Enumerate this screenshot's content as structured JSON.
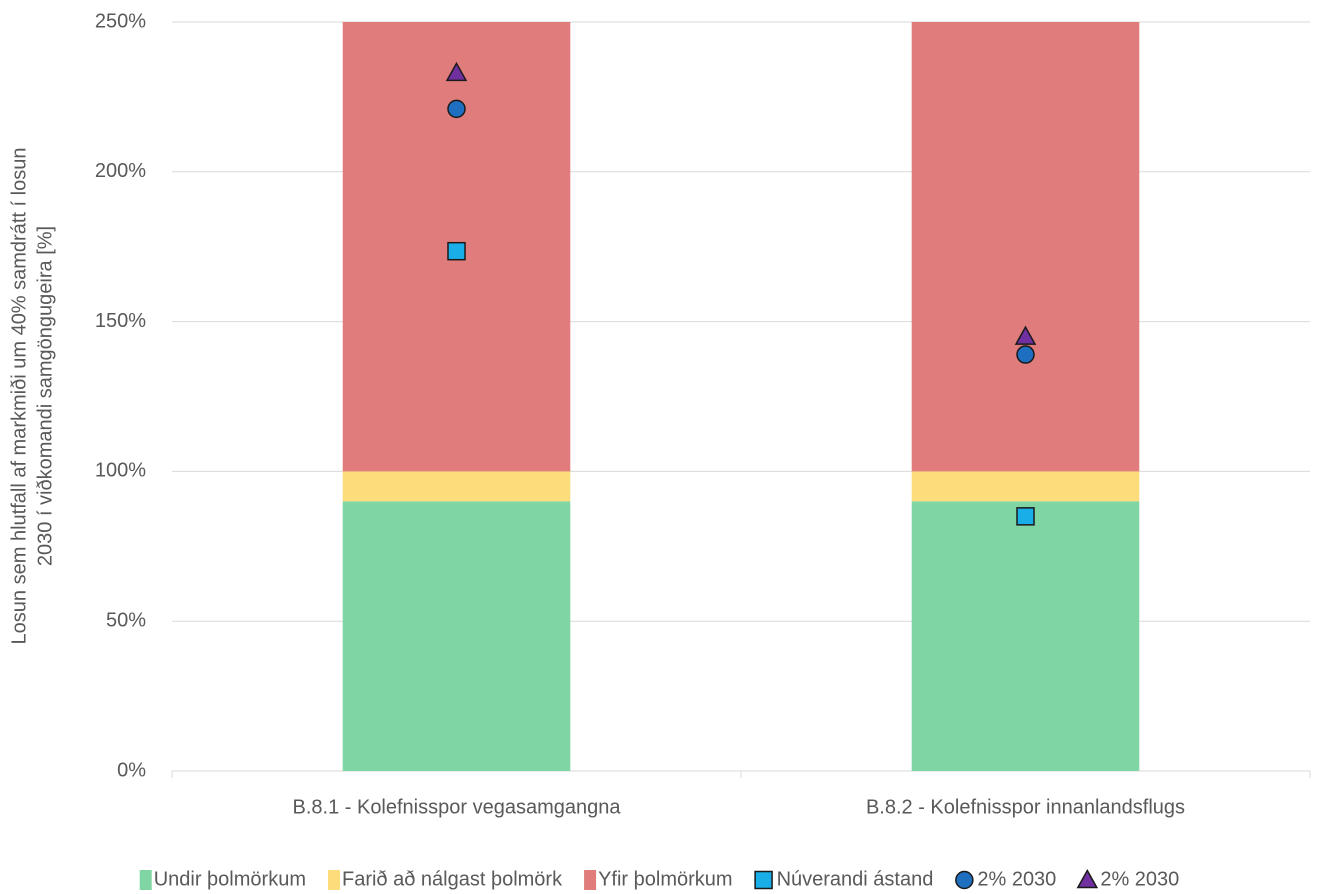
{
  "chart_data": {
    "type": "bar",
    "categories": [
      "B.8.1 - Kolefnisspor vegasamgangna",
      "B.8.2 - Kolefnisspor innanlandsflugs"
    ],
    "y_label": [
      "Losun sem hlutfall af markmiði um 40% samdrátt í losun",
      "2030 í viðkomandi samgöngugeira [%]"
    ],
    "series": [
      {
        "name": "Undir þolmörkum",
        "type": "bar",
        "color": "#7fd6a4",
        "values": [
          90,
          90
        ]
      },
      {
        "name": "Farið að nálgast þolmörk",
        "type": "bar",
        "color": "#fddc7c",
        "values": [
          10,
          10
        ]
      },
      {
        "name": "Yfir þolmörkum",
        "type": "bar",
        "color": "#e07c7c",
        "values": [
          150,
          150
        ]
      },
      {
        "name": "Núverandi ástand",
        "type": "scatter",
        "marker": "square",
        "color": "#1aaee8",
        "values": [
          173.5,
          85
        ]
      },
      {
        "name": "2% 2030",
        "type": "scatter",
        "marker": "circle",
        "color": "#1f6fc0",
        "values": [
          221,
          139
        ]
      },
      {
        "name": "2% 2030",
        "type": "scatter",
        "marker": "triangle",
        "color": "#7030a0",
        "values": [
          233,
          145
        ]
      }
    ],
    "ylim": [
      0,
      250
    ],
    "yticks": [
      {
        "value": 0,
        "label": "0%"
      },
      {
        "value": 50,
        "label": "50%"
      },
      {
        "value": 100,
        "label": "100%"
      },
      {
        "value": 150,
        "label": "150%"
      },
      {
        "value": 200,
        "label": "200%"
      },
      {
        "value": 250,
        "label": "250%"
      }
    ],
    "grid": true,
    "legend": "bottom"
  }
}
